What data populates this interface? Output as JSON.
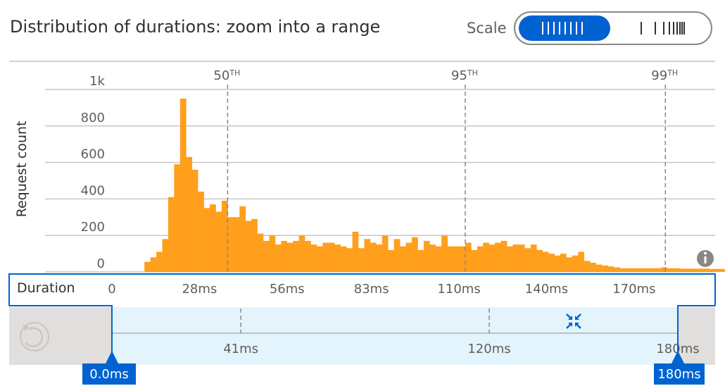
{
  "header": {
    "title": "Distribution of durations: zoom into a range",
    "scale_label": "Scale"
  },
  "colors": {
    "bar": "#ff9f1c",
    "accent": "#0063d1",
    "grid": "#c8c6c4",
    "selection": "#e3f4fd"
  },
  "icons": {
    "info": "info-icon",
    "reset": "undo-icon",
    "zoom": "zoom-in-icon",
    "scale_linear": "linear-scale-icon",
    "scale_log": "log-scale-icon"
  },
  "chart_data": {
    "type": "bar",
    "ylabel": "Request count",
    "xlabel": "Duration",
    "y_ticks": [
      "0",
      "200",
      "400",
      "600",
      "800",
      "1k"
    ],
    "ylim": [
      0,
      1000
    ],
    "xlim": [
      0,
      190
    ],
    "x_ticks": [
      "0",
      "28ms",
      "56ms",
      "83ms",
      "110ms",
      "140ms",
      "170ms"
    ],
    "x_tick_values": [
      0,
      28,
      56,
      83,
      111,
      139,
      167
    ],
    "percentiles": [
      {
        "label": "50",
        "suffix": "TH",
        "value": 37
      },
      {
        "label": "95",
        "suffix": "TH",
        "value": 113
      },
      {
        "label": "99",
        "suffix": "TH",
        "value": 177
      }
    ],
    "bin_start": 10.4,
    "bin_width": 1.9,
    "values": [
      55,
      80,
      110,
      180,
      410,
      590,
      950,
      630,
      560,
      440,
      350,
      370,
      330,
      390,
      300,
      300,
      360,
      280,
      290,
      210,
      170,
      200,
      150,
      170,
      160,
      170,
      200,
      170,
      150,
      140,
      160,
      160,
      150,
      140,
      130,
      220,
      130,
      180,
      160,
      150,
      200,
      120,
      180,
      140,
      160,
      190,
      120,
      170,
      150,
      140,
      200,
      140,
      140,
      140,
      160,
      120,
      140,
      160,
      150,
      160,
      170,
      140,
      150,
      150,
      130,
      150,
      120,
      110,
      100,
      90,
      100,
      80,
      90,
      110,
      60,
      50,
      40,
      35,
      30,
      25,
      20,
      20,
      20,
      20,
      20,
      20,
      20,
      25,
      20,
      20,
      18,
      18,
      18,
      18,
      18,
      16,
      16,
      16,
      16,
      16,
      16,
      15,
      15,
      15,
      15,
      15,
      15,
      15,
      15,
      15,
      15,
      15,
      15,
      15,
      15,
      15,
      15,
      15,
      15,
      15
    ]
  },
  "range_selector": {
    "ticks": [
      "41ms",
      "120ms",
      "180ms"
    ],
    "tick_values": [
      41,
      120,
      180
    ],
    "start_label": "0.0ms",
    "end_label": "180ms",
    "start_value": 0,
    "end_value": 180
  }
}
